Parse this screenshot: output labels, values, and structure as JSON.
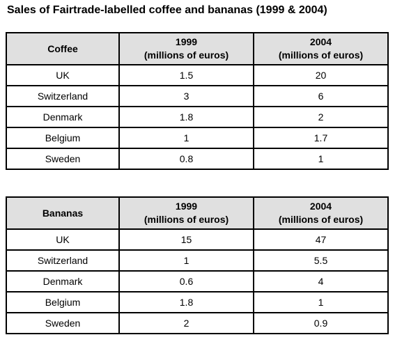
{
  "title": "Sales of Fairtrade-labelled coffee and bananas (1999 & 2004)",
  "colors": {
    "header_bg": "#e0e0e0",
    "border": "#000000",
    "background": "#ffffff",
    "text": "#000000"
  },
  "tables": [
    {
      "id": "coffee",
      "header": {
        "category": "Coffee",
        "col2_year": "1999",
        "col2_unit": "(millions of euros)",
        "col3_year": "2004",
        "col3_unit": "(millions of euros)"
      },
      "rows": [
        {
          "country": "UK",
          "v1999": "1.5",
          "v2004": "20"
        },
        {
          "country": "Switzerland",
          "v1999": "3",
          "v2004": "6"
        },
        {
          "country": "Denmark",
          "v1999": "1.8",
          "v2004": "2"
        },
        {
          "country": "Belgium",
          "v1999": "1",
          "v2004": "1.7"
        },
        {
          "country": "Sweden",
          "v1999": "0.8",
          "v2004": "1"
        }
      ]
    },
    {
      "id": "bananas",
      "header": {
        "category": "Bananas",
        "col2_year": "1999",
        "col2_unit": "(millions of euros)",
        "col3_year": "2004",
        "col3_unit": "(millions of euros)"
      },
      "rows": [
        {
          "country": "UK",
          "v1999": "15",
          "v2004": "47"
        },
        {
          "country": "Switzerland",
          "v1999": "1",
          "v2004": "5.5"
        },
        {
          "country": "Denmark",
          "v1999": "0.6",
          "v2004": "4"
        },
        {
          "country": "Belgium",
          "v1999": "1.8",
          "v2004": "1"
        },
        {
          "country": "Sweden",
          "v1999": "2",
          "v2004": "0.9"
        }
      ]
    }
  ],
  "chart_data": [
    {
      "type": "table",
      "title": "Sales of Fairtrade-labelled coffee (millions of euros)",
      "categories": [
        "UK",
        "Switzerland",
        "Denmark",
        "Belgium",
        "Sweden"
      ],
      "series": [
        {
          "name": "1999",
          "values": [
            1.5,
            3,
            1.8,
            1,
            0.8
          ]
        },
        {
          "name": "2004",
          "values": [
            20,
            6,
            2,
            1.7,
            1
          ]
        }
      ]
    },
    {
      "type": "table",
      "title": "Sales of Fairtrade-labelled bananas (millions of euros)",
      "categories": [
        "UK",
        "Switzerland",
        "Denmark",
        "Belgium",
        "Sweden"
      ],
      "series": [
        {
          "name": "1999",
          "values": [
            15,
            1,
            0.6,
            1.8,
            2
          ]
        },
        {
          "name": "2004",
          "values": [
            47,
            5.5,
            4,
            1,
            0.9
          ]
        }
      ]
    }
  ]
}
